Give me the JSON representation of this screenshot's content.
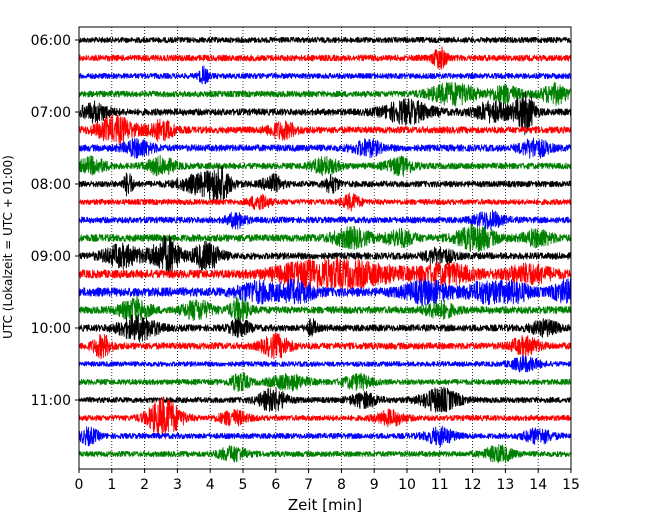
{
  "chart_data": {
    "type": "line",
    "subtype": "helicorder",
    "xlabel": "Zeit  [min]",
    "ylabel": "UTC (Lokalzeit = UTC + 01:00)",
    "xlim": [
      0,
      15
    ],
    "x_ticks": [
      0,
      1,
      2,
      3,
      4,
      5,
      6,
      7,
      8,
      9,
      10,
      11,
      12,
      13,
      14,
      15
    ],
    "y_ticks": [
      {
        "label": "06:00",
        "trace": 0
      },
      {
        "label": "07:00",
        "trace": 4
      },
      {
        "label": "08:00",
        "trace": 8
      },
      {
        "label": "09:00",
        "trace": 12
      },
      {
        "label": "10:00",
        "trace": 16
      },
      {
        "label": "11:00",
        "trace": 20
      }
    ],
    "grid": "vertical-dotted",
    "legend": "none",
    "trace_minutes": 15,
    "color_cycle": [
      "#000000",
      "#ff0000",
      "#0000ff",
      "#008000"
    ],
    "traces": [
      {
        "start": "06:00",
        "amplitude": 0.5,
        "bursts": []
      },
      {
        "start": "06:15",
        "amplitude": 0.55,
        "bursts": [
          {
            "t": 11.0,
            "a": 1.8,
            "w": 0.15
          }
        ]
      },
      {
        "start": "06:30",
        "amplitude": 0.5,
        "bursts": [
          {
            "t": 3.8,
            "a": 1.4,
            "w": 0.1
          }
        ]
      },
      {
        "start": "06:45",
        "amplitude": 0.55,
        "bursts": [
          {
            "t": 11.4,
            "a": 1.8,
            "w": 0.5
          },
          {
            "t": 13.0,
            "a": 1.4,
            "w": 0.3
          },
          {
            "t": 14.5,
            "a": 1.6,
            "w": 0.3
          }
        ]
      },
      {
        "start": "07:00",
        "amplitude": 0.6,
        "bursts": [
          {
            "t": 0.5,
            "a": 1.5,
            "w": 0.3
          },
          {
            "t": 10.0,
            "a": 1.9,
            "w": 0.5
          },
          {
            "t": 12.6,
            "a": 1.6,
            "w": 0.4
          },
          {
            "t": 13.6,
            "a": 3.5,
            "w": 0.2
          }
        ]
      },
      {
        "start": "07:15",
        "amplitude": 0.6,
        "bursts": [
          {
            "t": 1.1,
            "a": 2.2,
            "w": 0.4
          },
          {
            "t": 2.5,
            "a": 1.6,
            "w": 0.3
          },
          {
            "t": 6.2,
            "a": 1.3,
            "w": 0.3
          }
        ]
      },
      {
        "start": "07:30",
        "amplitude": 0.6,
        "bursts": [
          {
            "t": 1.8,
            "a": 1.4,
            "w": 0.3
          },
          {
            "t": 8.8,
            "a": 1.3,
            "w": 0.3
          },
          {
            "t": 13.9,
            "a": 1.5,
            "w": 0.3
          }
        ]
      },
      {
        "start": "07:45",
        "amplitude": 0.55,
        "bursts": [
          {
            "t": 0.4,
            "a": 1.3,
            "w": 0.3
          },
          {
            "t": 2.5,
            "a": 1.4,
            "w": 0.3
          },
          {
            "t": 7.5,
            "a": 1.3,
            "w": 0.3
          },
          {
            "t": 9.8,
            "a": 1.4,
            "w": 0.3
          }
        ]
      },
      {
        "start": "08:00",
        "amplitude": 0.55,
        "bursts": [
          {
            "t": 1.5,
            "a": 2.0,
            "w": 0.1
          },
          {
            "t": 3.8,
            "a": 1.7,
            "w": 0.5
          },
          {
            "t": 4.3,
            "a": 2.3,
            "w": 0.2
          },
          {
            "t": 5.9,
            "a": 1.5,
            "w": 0.2
          },
          {
            "t": 7.7,
            "a": 1.4,
            "w": 0.15
          }
        ]
      },
      {
        "start": "08:15",
        "amplitude": 0.5,
        "bursts": [
          {
            "t": 5.5,
            "a": 1.3,
            "w": 0.2
          },
          {
            "t": 8.3,
            "a": 1.2,
            "w": 0.2
          }
        ]
      },
      {
        "start": "08:30",
        "amplitude": 0.55,
        "bursts": [
          {
            "t": 4.8,
            "a": 1.2,
            "w": 0.2
          },
          {
            "t": 12.5,
            "a": 1.4,
            "w": 0.3
          }
        ]
      },
      {
        "start": "08:45",
        "amplitude": 0.65,
        "bursts": [
          {
            "t": 8.3,
            "a": 1.5,
            "w": 0.4
          },
          {
            "t": 9.8,
            "a": 1.3,
            "w": 0.3
          },
          {
            "t": 12.1,
            "a": 2.0,
            "w": 0.4
          },
          {
            "t": 14.0,
            "a": 1.3,
            "w": 0.3
          }
        ]
      },
      {
        "start": "09:00",
        "amplitude": 0.6,
        "bursts": [
          {
            "t": 1.3,
            "a": 1.8,
            "w": 0.4
          },
          {
            "t": 2.5,
            "a": 1.9,
            "w": 0.3
          },
          {
            "t": 2.8,
            "a": 2.1,
            "w": 0.2
          },
          {
            "t": 3.9,
            "a": 2.3,
            "w": 0.3
          },
          {
            "t": 11.0,
            "a": 1.3,
            "w": 0.3
          }
        ]
      },
      {
        "start": "09:15",
        "amplitude": 0.75,
        "bursts": [
          {
            "t": 7.0,
            "a": 1.6,
            "w": 0.8
          },
          {
            "t": 8.5,
            "a": 1.6,
            "w": 1.0
          },
          {
            "t": 11.2,
            "a": 1.5,
            "w": 0.6
          },
          {
            "t": 13.7,
            "a": 1.5,
            "w": 0.5
          }
        ]
      },
      {
        "start": "09:30",
        "amplitude": 0.8,
        "bursts": [
          {
            "t": 5.4,
            "a": 1.5,
            "w": 0.4
          },
          {
            "t": 6.6,
            "a": 1.6,
            "w": 0.4
          },
          {
            "t": 10.6,
            "a": 1.7,
            "w": 0.5
          },
          {
            "t": 12.4,
            "a": 1.6,
            "w": 0.4
          },
          {
            "t": 13.3,
            "a": 1.5,
            "w": 0.3
          },
          {
            "t": 14.9,
            "a": 1.7,
            "w": 0.3
          }
        ]
      },
      {
        "start": "09:45",
        "amplitude": 0.65,
        "bursts": [
          {
            "t": 1.7,
            "a": 1.9,
            "w": 0.3
          },
          {
            "t": 3.6,
            "a": 1.5,
            "w": 0.3
          },
          {
            "t": 4.9,
            "a": 1.8,
            "w": 0.2
          },
          {
            "t": 11.0,
            "a": 1.3,
            "w": 0.3
          }
        ]
      },
      {
        "start": "10:00",
        "amplitude": 0.6,
        "bursts": [
          {
            "t": 1.8,
            "a": 2.0,
            "w": 0.4
          },
          {
            "t": 4.9,
            "a": 1.5,
            "w": 0.2
          },
          {
            "t": 7.1,
            "a": 1.3,
            "w": 0.1
          },
          {
            "t": 14.2,
            "a": 1.2,
            "w": 0.3
          }
        ]
      },
      {
        "start": "10:15",
        "amplitude": 0.6,
        "bursts": [
          {
            "t": 0.7,
            "a": 1.8,
            "w": 0.2
          },
          {
            "t": 6.0,
            "a": 1.8,
            "w": 0.3
          },
          {
            "t": 13.6,
            "a": 1.4,
            "w": 0.3
          }
        ]
      },
      {
        "start": "10:30",
        "amplitude": 0.45,
        "bursts": [
          {
            "t": 13.6,
            "a": 1.2,
            "w": 0.3
          }
        ]
      },
      {
        "start": "10:45",
        "amplitude": 0.5,
        "bursts": [
          {
            "t": 4.9,
            "a": 1.5,
            "w": 0.2
          },
          {
            "t": 6.4,
            "a": 1.2,
            "w": 0.4
          },
          {
            "t": 8.5,
            "a": 1.2,
            "w": 0.3
          }
        ]
      },
      {
        "start": "11:00",
        "amplitude": 0.5,
        "bursts": [
          {
            "t": 5.9,
            "a": 1.9,
            "w": 0.3
          },
          {
            "t": 11.0,
            "a": 2.0,
            "w": 0.4
          },
          {
            "t": 8.7,
            "a": 1.2,
            "w": 0.3
          }
        ]
      },
      {
        "start": "11:15",
        "amplitude": 0.5,
        "bursts": [
          {
            "t": 2.6,
            "a": 3.4,
            "w": 0.35
          },
          {
            "t": 4.7,
            "a": 1.2,
            "w": 0.3
          },
          {
            "t": 9.5,
            "a": 1.2,
            "w": 0.3
          }
        ]
      },
      {
        "start": "11:30",
        "amplitude": 0.5,
        "bursts": [
          {
            "t": 0.3,
            "a": 1.3,
            "w": 0.2
          },
          {
            "t": 11.0,
            "a": 1.4,
            "w": 0.3
          },
          {
            "t": 14.0,
            "a": 1.2,
            "w": 0.3
          }
        ]
      },
      {
        "start": "11:45",
        "amplitude": 0.5,
        "bursts": [
          {
            "t": 4.7,
            "a": 1.2,
            "w": 0.3
          },
          {
            "t": 12.8,
            "a": 1.3,
            "w": 0.3
          }
        ]
      }
    ]
  }
}
